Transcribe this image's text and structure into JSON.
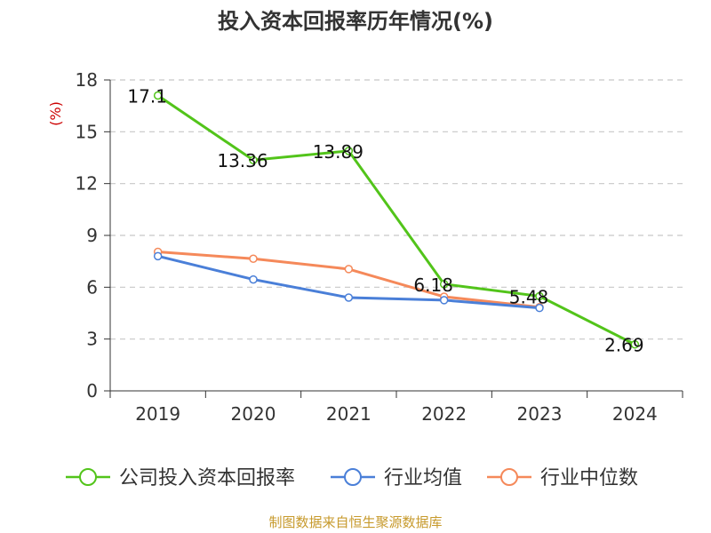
{
  "title": "投入资本回报率历年情况(%)",
  "source": "制图数据来自恒生聚源数据库",
  "chart_data": {
    "type": "line",
    "title": "投入资本回报率历年情况(%)",
    "ylabel": "(%)",
    "categories": [
      "2019",
      "2020",
      "2021",
      "2022",
      "2023",
      "2024"
    ],
    "ylim": [
      0,
      18
    ],
    "yticks": [
      0,
      3,
      6,
      9,
      12,
      15,
      18
    ],
    "grid": true,
    "legend_position": "bottom",
    "series": [
      {
        "name": "公司投入资本回报率",
        "color": "#52c41a",
        "values": [
          17.1,
          13.36,
          13.89,
          6.18,
          5.48,
          2.69
        ],
        "labels": [
          "17.1",
          "13.36",
          "13.89",
          "6.18",
          "5.48",
          "2.69"
        ]
      },
      {
        "name": "行业均值",
        "color": "#4a7fd8",
        "values": [
          7.8,
          6.45,
          5.4,
          5.25,
          4.8,
          null
        ]
      },
      {
        "name": "行业中位数",
        "color": "#f5895a",
        "values": [
          8.05,
          7.65,
          7.05,
          5.45,
          4.85,
          null
        ]
      }
    ]
  }
}
